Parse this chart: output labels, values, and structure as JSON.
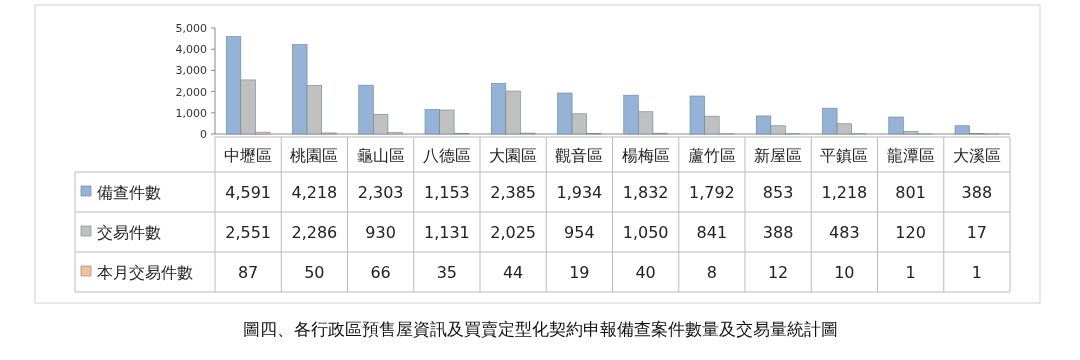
{
  "chart_data": {
    "type": "bar",
    "title": "圖四、各行政區預售屋資訊及買賣定型化契約申報備查案件數量及交易量統計圖",
    "categories": [
      "中壢區",
      "桃園區",
      "龜山區",
      "八德區",
      "大園區",
      "觀音區",
      "楊梅區",
      "蘆竹區",
      "新屋區",
      "平鎮區",
      "龍潭區",
      "大溪區"
    ],
    "series": [
      {
        "name": "備查件數",
        "color": "#95b3d7",
        "values": [
          4591,
          4218,
          2303,
          1153,
          2385,
          1934,
          1832,
          1792,
          853,
          1218,
          801,
          388
        ],
        "value_labels": [
          "4,591",
          "4,218",
          "2,303",
          "1,153",
          "2,385",
          "1,934",
          "1,832",
          "1,792",
          "853",
          "1,218",
          "801",
          "388"
        ]
      },
      {
        "name": "交易件數",
        "color": "#c0c0c0",
        "values": [
          2551,
          2286,
          930,
          1131,
          2025,
          954,
          1050,
          841,
          388,
          483,
          120,
          17
        ],
        "value_labels": [
          "2,551",
          "2,286",
          "930",
          "1,131",
          "2,025",
          "954",
          "1,050",
          "841",
          "388",
          "483",
          "120",
          "17"
        ]
      },
      {
        "name": "本月交易件數",
        "color": "#fac090",
        "values": [
          87,
          50,
          66,
          35,
          44,
          19,
          40,
          8,
          12,
          10,
          1,
          1
        ],
        "value_labels": [
          "87",
          "50",
          "66",
          "35",
          "44",
          "19",
          "40",
          "8",
          "12",
          "10",
          "1",
          "1"
        ]
      }
    ],
    "ylim": [
      0,
      5000
    ],
    "yticks": [
      0,
      {
        "value": 1000,
        "label": "1,000"
      },
      {
        "value": 2000,
        "label": "2,000"
      },
      {
        "value": 3000,
        "label": "3,000"
      },
      {
        "value": 4000,
        "label": "4,000"
      },
      {
        "value": 5000,
        "label": "5,000"
      }
    ],
    "legend": "left",
    "grid": false
  }
}
